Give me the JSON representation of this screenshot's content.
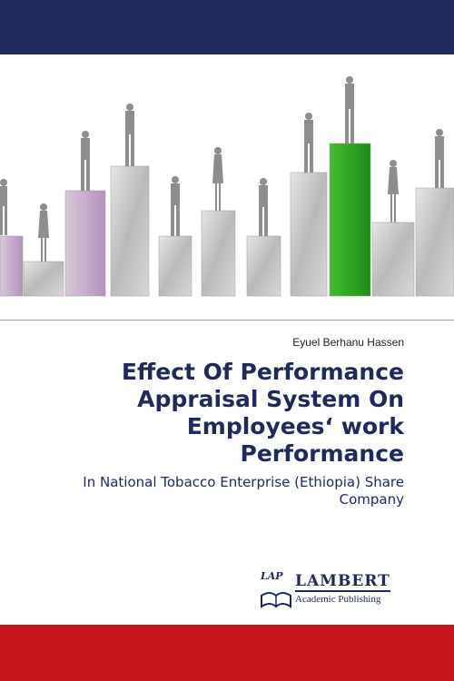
{
  "author": "Eyuel Berhanu Hassen",
  "title": "Effect Of Performance Appraisal System On Employees‘ work Performance",
  "subtitle": "In National Tobacco Enterprise (Ethiopia) Share Company",
  "publisher": {
    "mark": "LAP",
    "name": "LAMBERT",
    "tagline": "Academic Publishing"
  }
}
